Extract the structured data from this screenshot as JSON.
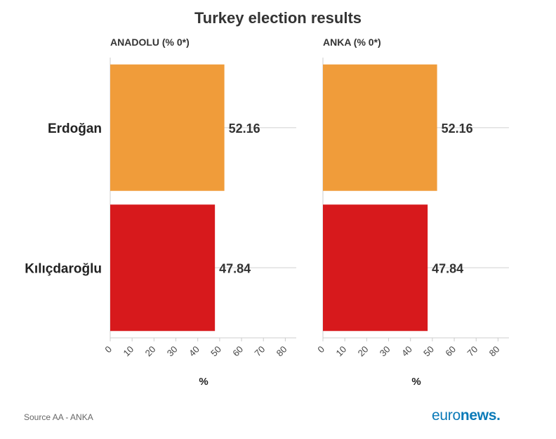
{
  "title": "Turkey election results",
  "source": "Source AA - ANKA",
  "logo": {
    "part1": "euro",
    "part2": "news."
  },
  "colors": {
    "erdogan": "#f09c3a",
    "kilicdaroglu": "#d7191c",
    "grid": "#e0e0e0",
    "axis": "#cccccc"
  },
  "chart_data": [
    {
      "type": "bar",
      "orientation": "horizontal",
      "title": "ANADOLU (% 0*)",
      "categories": [
        "Erdoğan",
        "Kılıçdaroğlu"
      ],
      "values": [
        52.16,
        47.84
      ],
      "value_labels": [
        "52.16",
        "47.84"
      ],
      "xlabel": "%",
      "xlim": [
        0,
        85
      ],
      "ticks": [
        0,
        10,
        20,
        30,
        40,
        50,
        60,
        70,
        80
      ],
      "grid": true
    },
    {
      "type": "bar",
      "orientation": "horizontal",
      "title": "ANKA (% 0*)",
      "categories": [
        "Erdoğan",
        "Kılıçdaroğlu"
      ],
      "values": [
        52.16,
        47.84
      ],
      "value_labels": [
        "52.16",
        "47.84"
      ],
      "xlabel": "%",
      "xlim": [
        0,
        85
      ],
      "ticks": [
        0,
        10,
        20,
        30,
        40,
        50,
        60,
        70,
        80
      ],
      "grid": true
    }
  ]
}
